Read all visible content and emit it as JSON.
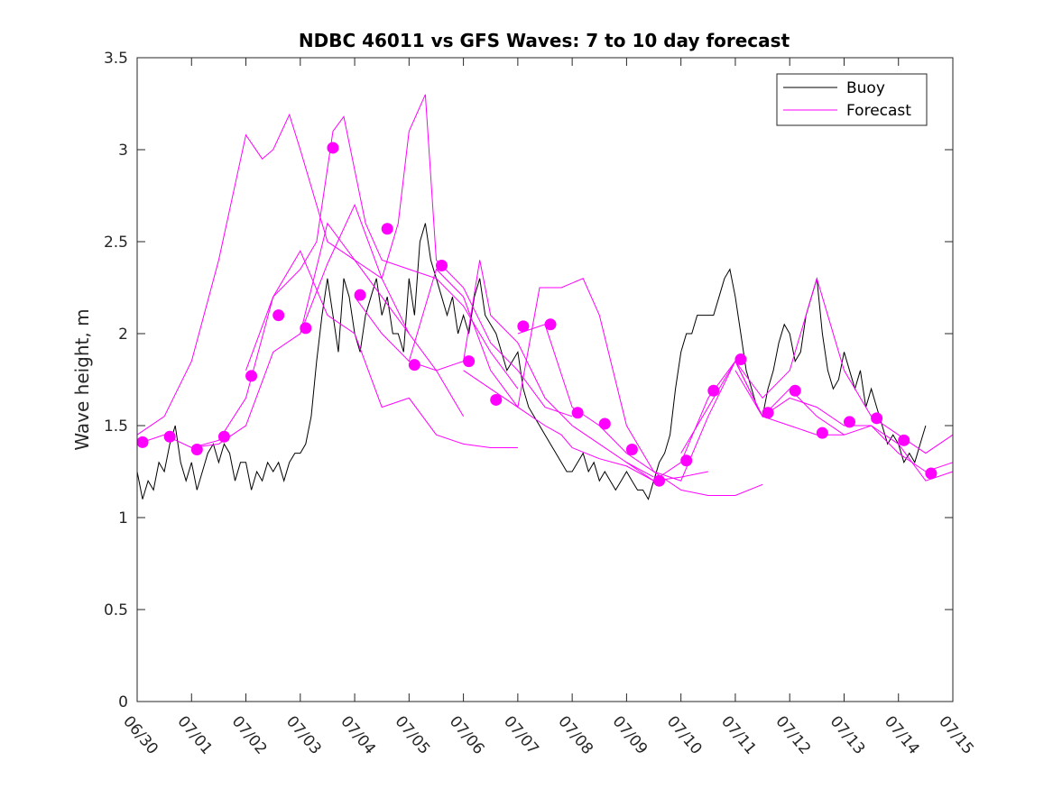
{
  "chart_data": {
    "type": "line",
    "title": "NDBC 46011 vs GFS Waves: 7 to 10 day forecast",
    "xlabel": "",
    "ylabel": "Wave height, m",
    "xlim": [
      0,
      15
    ],
    "ylim": [
      0,
      3.5
    ],
    "x_ticks": [
      0,
      1,
      2,
      3,
      4,
      5,
      6,
      7,
      8,
      9,
      10,
      11,
      12,
      13,
      14,
      15
    ],
    "x_tick_labels": [
      "06/30",
      "07/01",
      "07/02",
      "07/03",
      "07/04",
      "07/05",
      "07/06",
      "07/07",
      "07/08",
      "07/09",
      "07/10",
      "07/11",
      "07/12",
      "07/13",
      "07/14",
      "07/15"
    ],
    "y_ticks": [
      0,
      0.5,
      1,
      1.5,
      2,
      2.5,
      3,
      3.5
    ],
    "y_tick_labels": [
      "0",
      "0.5",
      "1",
      "1.5",
      "2",
      "2.5",
      "3",
      "3.5"
    ],
    "grid": false,
    "legend": {
      "position": "top-right",
      "entries": [
        {
          "label": "Buoy",
          "color": "#000000"
        },
        {
          "label": "Forecast",
          "color": "#ff00ff"
        }
      ]
    },
    "colors": {
      "buoy": "#000000",
      "forecast": "#ff00ff"
    },
    "series": [
      {
        "name": "Buoy",
        "style": "line",
        "x": [
          0,
          0.1,
          0.2,
          0.3,
          0.4,
          0.5,
          0.6,
          0.7,
          0.8,
          0.9,
          1.0,
          1.1,
          1.2,
          1.3,
          1.4,
          1.5,
          1.6,
          1.7,
          1.8,
          1.9,
          2.0,
          2.1,
          2.2,
          2.3,
          2.4,
          2.5,
          2.6,
          2.7,
          2.8,
          2.9,
          3.0,
          3.1,
          3.2,
          3.3,
          3.4,
          3.5,
          3.6,
          3.7,
          3.8,
          3.9,
          4.0,
          4.1,
          4.2,
          4.3,
          4.4,
          4.5,
          4.6,
          4.7,
          4.8,
          4.9,
          5.0,
          5.1,
          5.2,
          5.3,
          5.4,
          5.5,
          5.6,
          5.7,
          5.8,
          5.9,
          6.0,
          6.1,
          6.2,
          6.3,
          6.4,
          6.5,
          6.6,
          6.7,
          6.8,
          6.9,
          7.0,
          7.1,
          7.2,
          7.3,
          7.4,
          7.5,
          7.6,
          7.7,
          7.8,
          7.9,
          8.0,
          8.1,
          8.2,
          8.3,
          8.4,
          8.5,
          8.6,
          8.7,
          8.8,
          8.9,
          9.0,
          9.1,
          9.2,
          9.3,
          9.4,
          9.5,
          9.6,
          9.7,
          9.8,
          9.9,
          10.0,
          10.1,
          10.2,
          10.3,
          10.4,
          10.5,
          10.6,
          10.7,
          10.8,
          10.9,
          11.0,
          11.1,
          11.2,
          11.3,
          11.4,
          11.5,
          11.6,
          11.7,
          11.8,
          11.9,
          12.0,
          12.1,
          12.2,
          12.3,
          12.4,
          12.5,
          12.6,
          12.7,
          12.8,
          12.9,
          13.0,
          13.1,
          13.2,
          13.3,
          13.4,
          13.5,
          13.6,
          13.7,
          13.8,
          13.9,
          14.0,
          14.1,
          14.2,
          14.3,
          14.4,
          14.5
        ],
        "values": [
          1.25,
          1.1,
          1.2,
          1.15,
          1.3,
          1.25,
          1.4,
          1.5,
          1.3,
          1.2,
          1.3,
          1.15,
          1.25,
          1.35,
          1.4,
          1.3,
          1.4,
          1.35,
          1.2,
          1.3,
          1.3,
          1.15,
          1.25,
          1.2,
          1.3,
          1.25,
          1.3,
          1.2,
          1.3,
          1.35,
          1.35,
          1.4,
          1.55,
          1.85,
          2.1,
          2.3,
          2.1,
          1.9,
          2.3,
          2.2,
          2.0,
          1.9,
          2.1,
          2.2,
          2.3,
          2.1,
          2.2,
          2.0,
          2.0,
          1.9,
          2.3,
          2.1,
          2.5,
          2.6,
          2.4,
          2.3,
          2.2,
          2.1,
          2.2,
          2.0,
          2.1,
          2.0,
          2.2,
          2.3,
          2.1,
          2.05,
          2.0,
          1.9,
          1.8,
          1.85,
          1.9,
          1.7,
          1.6,
          1.55,
          1.5,
          1.45,
          1.4,
          1.35,
          1.3,
          1.25,
          1.25,
          1.3,
          1.35,
          1.25,
          1.3,
          1.2,
          1.25,
          1.2,
          1.15,
          1.2,
          1.25,
          1.2,
          1.15,
          1.15,
          1.1,
          1.2,
          1.3,
          1.35,
          1.45,
          1.7,
          1.9,
          2.0,
          2.0,
          2.1,
          2.1,
          2.1,
          2.1,
          2.2,
          2.3,
          2.35,
          2.2,
          2.0,
          1.8,
          1.7,
          1.6,
          1.55,
          1.7,
          1.8,
          1.95,
          2.05,
          2.0,
          1.85,
          1.9,
          2.1,
          2.2,
          2.3,
          2.0,
          1.8,
          1.7,
          1.75,
          1.9,
          1.8,
          1.7,
          1.8,
          1.6,
          1.7,
          1.6,
          1.5,
          1.4,
          1.45,
          1.4,
          1.3,
          1.35,
          1.3,
          1.4,
          1.5
        ]
      },
      {
        "name": "Forecast",
        "style": "line",
        "x": [
          0,
          0.5,
          1.0,
          1.5,
          2.0,
          2.3,
          2.5,
          2.8,
          3.0,
          3.5,
          4.0,
          4.5,
          5.0
        ],
        "values": [
          1.45,
          1.55,
          1.85,
          2.4,
          3.08,
          2.95,
          3.0,
          3.19,
          3.0,
          2.5,
          2.4,
          2.2,
          2.0
        ]
      },
      {
        "name": "Forecast",
        "style": "line",
        "x": [
          0,
          0.5,
          1.0,
          1.5,
          2.0,
          2.5,
          3.0,
          3.5,
          4.0,
          4.5,
          5.0,
          5.5,
          6.0
        ],
        "values": [
          1.4,
          1.45,
          1.38,
          1.4,
          1.5,
          1.9,
          2.0,
          2.38,
          2.7,
          2.3,
          2.0,
          1.8,
          1.55
        ]
      },
      {
        "name": "Forecast",
        "style": "line",
        "x": [
          1.0,
          1.5,
          2.0,
          2.5,
          3.0,
          3.5,
          4.0,
          4.5,
          5.0,
          5.5,
          6.0,
          6.5,
          7.0
        ],
        "values": [
          1.38,
          1.42,
          1.65,
          2.2,
          2.45,
          2.1,
          2.0,
          1.6,
          1.65,
          1.45,
          1.4,
          1.38,
          1.38
        ]
      },
      {
        "name": "Forecast",
        "style": "line",
        "x": [
          2.0,
          2.5,
          3.0,
          3.3,
          3.6,
          3.8,
          4.2,
          4.5,
          5.0,
          5.5,
          6.0,
          6.5,
          7.0
        ],
        "values": [
          1.8,
          2.2,
          2.35,
          2.5,
          3.1,
          3.18,
          2.6,
          2.4,
          2.35,
          2.3,
          2.15,
          1.9,
          1.7
        ]
      },
      {
        "name": "Forecast",
        "style": "line",
        "x": [
          3.0,
          3.5,
          4.0,
          4.5,
          4.8,
          5.0,
          5.3,
          5.5,
          6.0,
          6.5,
          7.0,
          7.5,
          8.0
        ],
        "values": [
          2.0,
          2.6,
          2.4,
          2.3,
          2.6,
          3.1,
          3.3,
          2.4,
          2.25,
          1.95,
          1.8,
          1.6,
          1.55
        ]
      },
      {
        "name": "Forecast",
        "style": "line",
        "x": [
          4.0,
          4.5,
          5.0,
          5.5,
          6.0,
          6.3,
          6.5,
          7.0,
          7.5,
          8.0,
          8.5,
          9.0,
          9.5
        ],
        "values": [
          2.2,
          2.0,
          1.85,
          1.8,
          1.85,
          2.4,
          2.1,
          1.95,
          1.65,
          1.5,
          1.4,
          1.3,
          1.22
        ]
      },
      {
        "name": "Forecast",
        "style": "line",
        "x": [
          5.0,
          5.5,
          6.0,
          6.5,
          7.0,
          7.5,
          7.8,
          8.0,
          8.5,
          9.0,
          9.5,
          10.0,
          10.5
        ],
        "values": [
          1.85,
          2.35,
          2.2,
          1.8,
          1.6,
          1.5,
          1.45,
          1.38,
          1.32,
          1.28,
          1.2,
          1.22,
          1.25
        ]
      },
      {
        "name": "Forecast",
        "style": "line",
        "x": [
          6.0,
          6.5,
          7.0,
          7.4,
          7.8,
          8.2,
          8.5,
          9.0,
          9.5,
          10.0,
          10.5,
          11.0,
          11.5
        ],
        "values": [
          1.8,
          1.7,
          1.6,
          2.25,
          2.25,
          2.3,
          2.1,
          1.5,
          1.25,
          1.15,
          1.12,
          1.12,
          1.18
        ]
      },
      {
        "name": "Forecast",
        "style": "line",
        "x": [
          7.0,
          7.5,
          8.0,
          8.5,
          9.0,
          9.5,
          10.0,
          10.5,
          11.0,
          11.5,
          12.0,
          12.5,
          13.0
        ],
        "values": [
          2.0,
          2.05,
          1.6,
          1.5,
          1.35,
          1.25,
          1.2,
          1.55,
          1.85,
          1.55,
          1.5,
          1.45,
          1.45
        ]
      },
      {
        "name": "Forecast",
        "style": "line",
        "x": [
          9.0,
          9.5,
          10.0,
          10.5,
          11.0,
          11.5,
          12.0,
          12.5,
          13.0,
          13.5,
          14.0,
          14.5,
          15.0
        ],
        "values": [
          1.3,
          1.2,
          1.3,
          1.65,
          1.85,
          1.55,
          1.65,
          1.6,
          1.5,
          1.5,
          1.35,
          1.25,
          1.3
        ]
      },
      {
        "name": "Forecast",
        "style": "line",
        "x": [
          10.0,
          10.5,
          11.0,
          11.5,
          12.0,
          12.5,
          13.0,
          13.5,
          14.0,
          14.5,
          15.0
        ],
        "values": [
          1.35,
          1.6,
          1.85,
          1.65,
          1.8,
          2.3,
          1.8,
          1.55,
          1.45,
          1.35,
          1.45
        ]
      },
      {
        "name": "Forecast",
        "style": "line",
        "x": [
          11.0,
          11.5,
          12.0,
          12.5,
          13.0,
          13.5,
          14.0,
          14.5,
          15.0
        ],
        "values": [
          1.8,
          1.55,
          1.7,
          1.55,
          1.45,
          1.5,
          1.4,
          1.2,
          1.25
        ]
      },
      {
        "name": "Forecast",
        "style": "markers",
        "x": [
          0.1,
          0.6,
          1.1,
          1.6,
          2.1,
          2.6,
          3.1,
          3.6,
          4.1,
          4.6,
          5.1,
          5.6,
          6.1,
          6.6,
          7.1,
          7.6,
          8.1,
          8.6,
          9.1,
          9.6,
          10.1,
          10.6,
          11.1,
          11.6,
          12.1,
          12.6,
          13.1,
          13.6,
          14.1,
          14.6
        ],
        "values": [
          1.41,
          1.44,
          1.37,
          1.44,
          1.77,
          2.1,
          2.03,
          3.01,
          2.21,
          2.57,
          1.83,
          2.37,
          1.85,
          1.64,
          2.04,
          2.05,
          1.57,
          1.51,
          1.37,
          1.2,
          1.31,
          1.69,
          1.86,
          1.57,
          1.69,
          1.46,
          1.52,
          1.54,
          1.42,
          1.24
        ]
      }
    ]
  }
}
